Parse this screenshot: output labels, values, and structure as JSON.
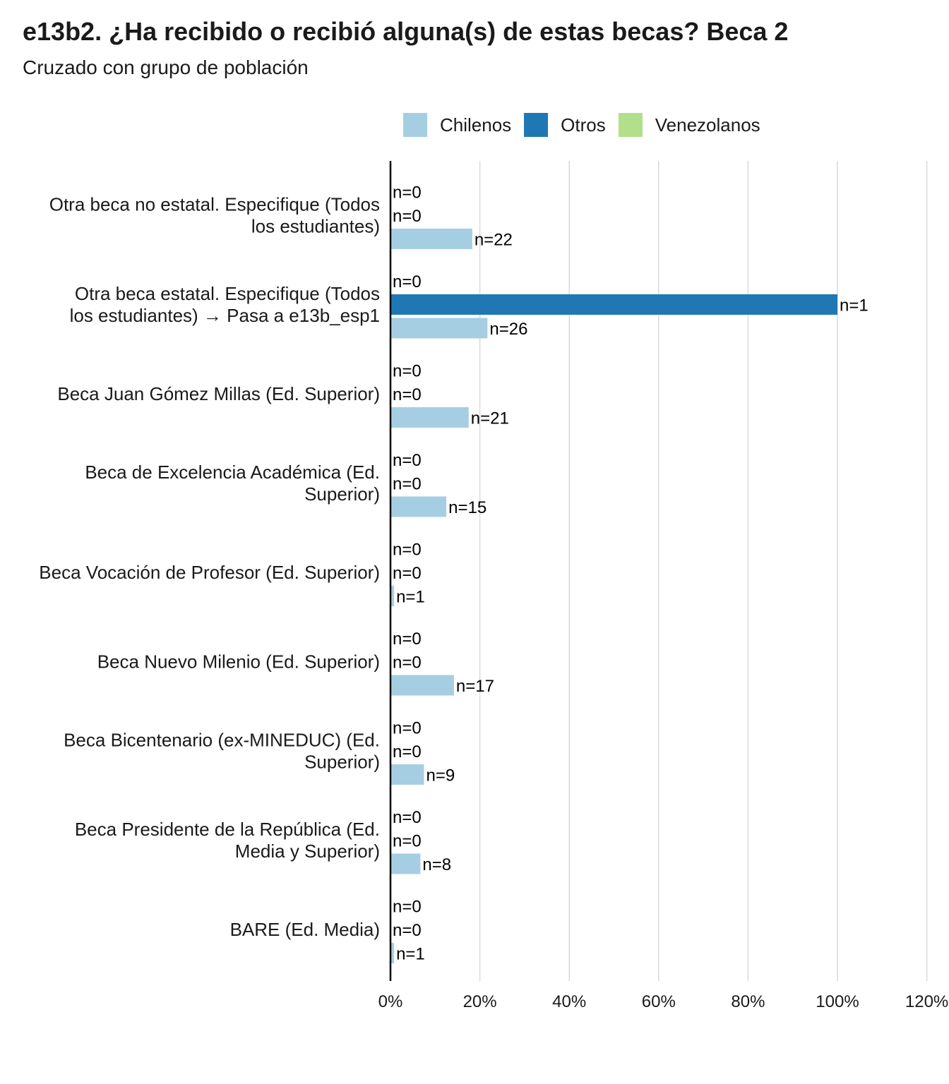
{
  "title": "e13b2. ¿Ha recibido o recibió alguna(s) de estas becas? Beca 2",
  "subtitle": "Cruzado con grupo de población",
  "colors": {
    "Chilenos": "#a6cee3",
    "Otros": "#1f78b4",
    "Venezolanos": "#b2df8a"
  },
  "chart_data": {
    "type": "bar",
    "orientation": "horizontal",
    "title": "e13b2. ¿Ha recibido o recibió alguna(s) de estas becas? Beca 2",
    "subtitle": "Cruzado con grupo de población",
    "legend": {
      "placement": "top",
      "entries": [
        "Chilenos",
        "Otros",
        "Venezolanos"
      ]
    },
    "xlim": [
      0,
      120
    ],
    "x_ticks": [
      "0%",
      "20%",
      "40%",
      "60%",
      "80%",
      "100%",
      "120%"
    ],
    "grid": true,
    "categories": [
      [
        "Otra beca no estatal. Especifique (Todos",
        "los estudiantes)"
      ],
      [
        "Otra beca estatal. Especifique (Todos",
        "los estudiantes) → Pasa a e13b_esp1"
      ],
      [
        "Beca Juan Gómez Millas (Ed. Superior)"
      ],
      [
        "Beca de Excelencia Académica (Ed.",
        "Superior)"
      ],
      [
        "Beca Vocación de Profesor (Ed. Superior)"
      ],
      [
        "Beca Nuevo Milenio (Ed. Superior)"
      ],
      [
        "Beca Bicentenario (ex-MINEDUC) (Ed.",
        "Superior)"
      ],
      [
        "Beca Presidente de la República (Ed.",
        "Media y Superior)"
      ],
      [
        "BARE (Ed. Media)"
      ]
    ],
    "series": [
      {
        "name": "Venezolanos",
        "values": [
          0,
          0,
          0,
          0,
          0,
          0,
          0,
          0,
          0
        ],
        "n_labels": [
          "n=0",
          "n=0",
          "n=0",
          "n=0",
          "n=0",
          "n=0",
          "n=0",
          "n=0",
          "n=0"
        ]
      },
      {
        "name": "Otros",
        "values": [
          0,
          100,
          0,
          0,
          0,
          0,
          0,
          0,
          0
        ],
        "n_labels": [
          "n=0",
          "n=1",
          "n=0",
          "n=0",
          "n=0",
          "n=0",
          "n=0",
          "n=0",
          "n=0"
        ]
      },
      {
        "name": "Chilenos",
        "values": [
          18.3,
          21.7,
          17.5,
          12.5,
          0.8,
          14.2,
          7.5,
          6.7,
          0.8
        ],
        "n_labels": [
          "n=22",
          "n=26",
          "n=21",
          "n=15",
          "n=1",
          "n=17",
          "n=9",
          "n=8",
          "n=1"
        ]
      }
    ]
  }
}
